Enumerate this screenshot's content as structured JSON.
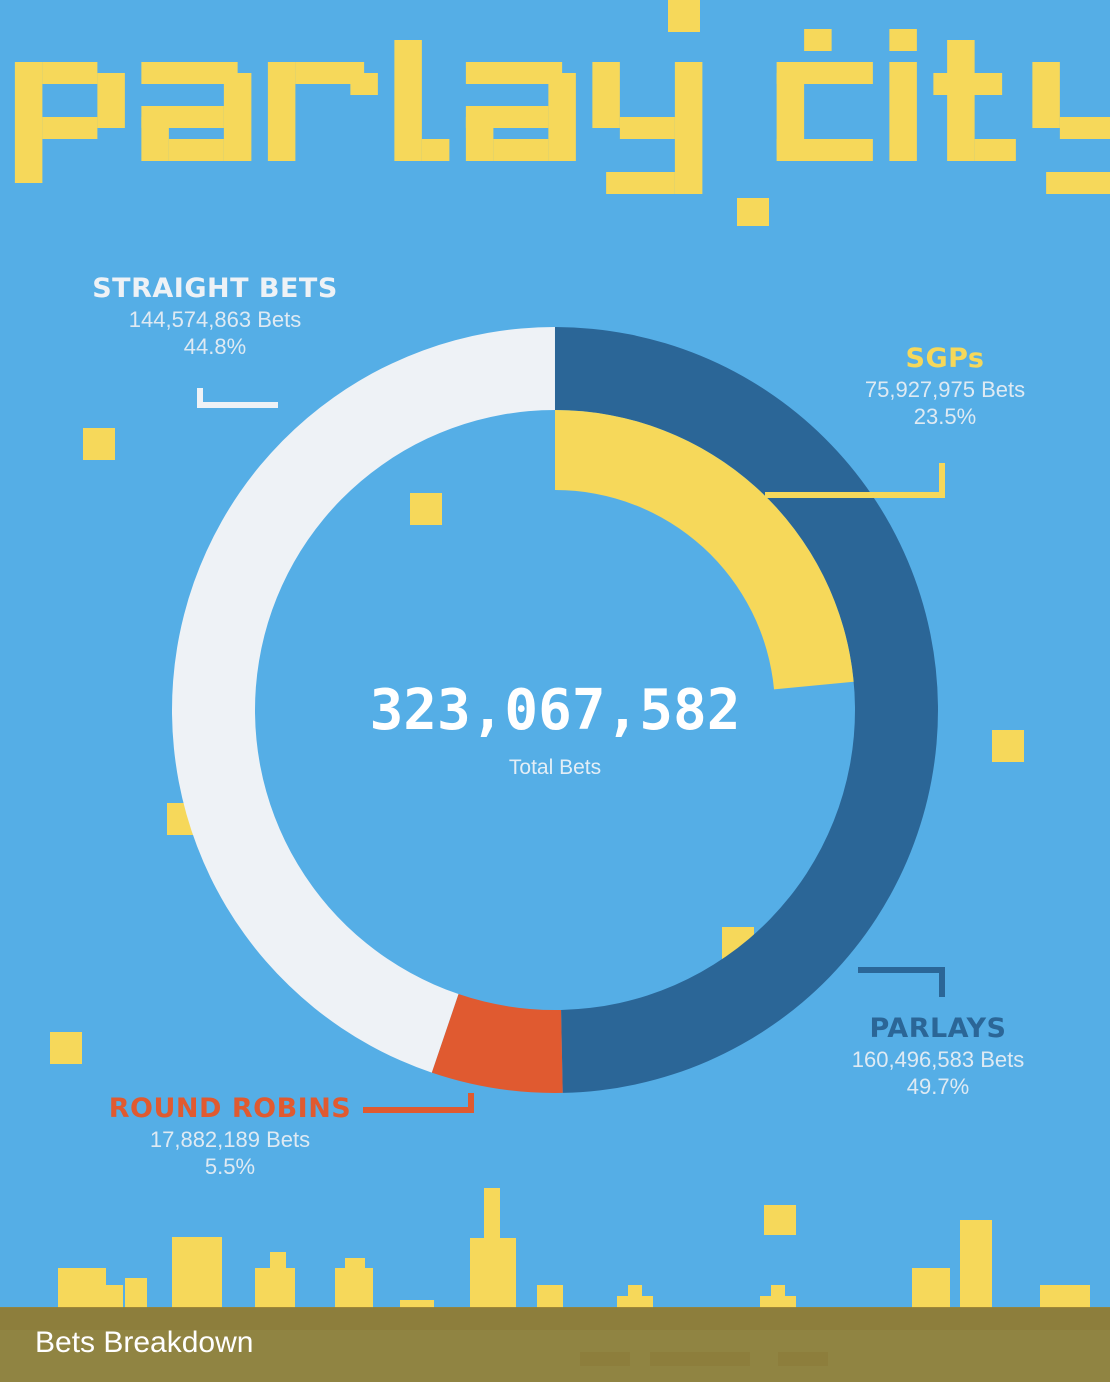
{
  "title": "parlay city",
  "caption": "Bets Breakdown",
  "center": {
    "total": "323,067,582",
    "caption": "Total Bets"
  },
  "colors": {
    "background": "#55aee6",
    "title": "#f6d85a",
    "straight": "#eef2f6",
    "sgp": "#f6d85a",
    "parlay": "#2b6697",
    "round_robin": "#e05a30",
    "caption_bar": "#968034"
  },
  "segments": [
    {
      "name": "STRAIGHT BETS",
      "bets": "144,574,863 Bets",
      "percent": "44.8%"
    },
    {
      "name": "SGPs",
      "bets": "75,927,975 Bets",
      "percent": "23.5%"
    },
    {
      "name": "PARLAYS",
      "bets": "160,496,583 Bets",
      "percent": "49.7%"
    },
    {
      "name": "ROUND ROBINS",
      "bets": "17,882,189 Bets",
      "percent": "5.5%"
    }
  ],
  "chart_data": {
    "type": "pie",
    "total": 323067582,
    "slices": [
      {
        "label": "STRAIGHT BETS",
        "value": 144574863,
        "percent": 44.8
      },
      {
        "label": "SGPs",
        "value": 75927975,
        "percent": 23.5
      },
      {
        "label": "PARLAYS",
        "value": 160496583,
        "percent": 49.7
      },
      {
        "label": "ROUND ROBINS",
        "value": 17882189,
        "percent": 5.5
      }
    ]
  }
}
